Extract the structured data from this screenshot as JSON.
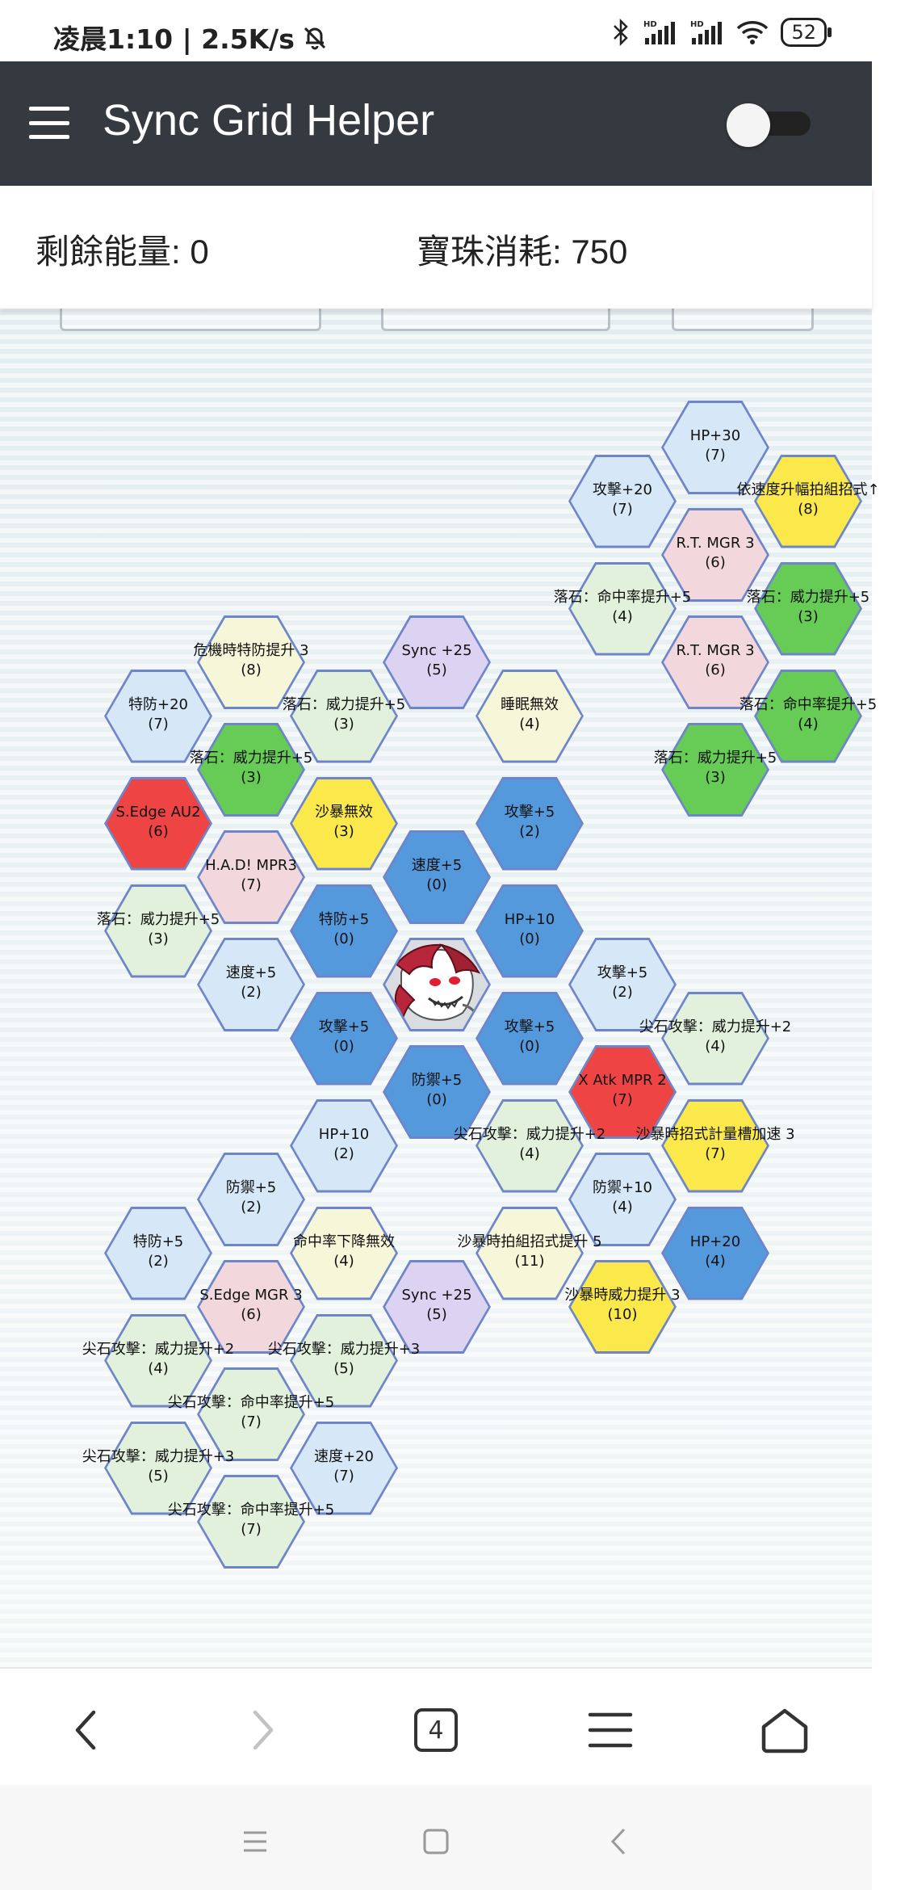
{
  "status_bar": {
    "time_speed": "凌晨1:10 | 2.5K/s",
    "battery": "52",
    "icons": [
      "mute-bell-icon",
      "bluetooth-icon",
      "signal-hd-icon",
      "signal-hd-icon",
      "wifi-icon",
      "battery-icon"
    ]
  },
  "app_bar": {
    "title": "Sync Grid Helper",
    "menu_icon": "hamburger-menu-icon",
    "toggle_on": false
  },
  "stats": {
    "energy": "剩餘能量: 0",
    "orbs": "寶珠消耗: 750"
  },
  "colors": {
    "dark_blue": "#5599dd",
    "light_blue": "#d6e8f7",
    "green": "#66cc55",
    "light_green": "#e2f1dc",
    "yellow": "#fbe94c",
    "light_yellow": "#f6f6d8",
    "red": "#ee4444",
    "pink": "#f2d8dc",
    "purple": "#dcd2f2",
    "center": "#d9dde0",
    "hex_border": "#6e86c9"
  },
  "tiles": [
    {
      "label": "HP+30",
      "cost": "(7)",
      "color": "light_blue",
      "col": 6,
      "row": 0
    },
    {
      "label": "攻擊+20",
      "cost": "(7)",
      "color": "light_blue",
      "col": 5,
      "row": 1
    },
    {
      "label": "依速度升幅拍組招式↑",
      "cost": "(8)",
      "color": "yellow",
      "col": 7,
      "row": 1
    },
    {
      "label": "R.T. MGR 3",
      "cost": "(6)",
      "color": "pink",
      "col": 6,
      "row": 2
    },
    {
      "label": "落石：命中率提升+5",
      "cost": "(4)",
      "color": "light_green",
      "col": 5,
      "row": 3
    },
    {
      "label": "落石：威力提升+5",
      "cost": "(3)",
      "color": "green",
      "col": 7,
      "row": 3
    },
    {
      "label": "危機時特防提升 3",
      "cost": "(8)",
      "color": "light_yellow",
      "col": 1,
      "row": 4
    },
    {
      "label": "Sync +25",
      "cost": "(5)",
      "color": "purple",
      "col": 3,
      "row": 4
    },
    {
      "label": "R.T. MGR 3",
      "cost": "(6)",
      "color": "pink",
      "col": 6,
      "row": 4
    },
    {
      "label": "特防+20",
      "cost": "(7)",
      "color": "light_blue",
      "col": 0,
      "row": 5
    },
    {
      "label": "落石：威力提升+5",
      "cost": "(3)",
      "color": "light_green",
      "col": 2,
      "row": 5
    },
    {
      "label": "睡眠無效",
      "cost": "(4)",
      "color": "light_yellow",
      "col": 4,
      "row": 5
    },
    {
      "label": "落石：命中率提升+5",
      "cost": "(4)",
      "color": "green",
      "col": 7,
      "row": 5
    },
    {
      "label": "落石：威力提升+5",
      "cost": "(3)",
      "color": "green",
      "col": 1,
      "row": 6
    },
    {
      "label": "落石：威力提升+5",
      "cost": "(3)",
      "color": "green",
      "col": 6,
      "row": 6
    },
    {
      "label": "S.Edge AU2",
      "cost": "(6)",
      "color": "red",
      "col": 0,
      "row": 7
    },
    {
      "label": "沙暴無效",
      "cost": "(3)",
      "color": "yellow",
      "col": 2,
      "row": 7
    },
    {
      "label": "攻擊+5",
      "cost": "(2)",
      "color": "dark_blue",
      "col": 4,
      "row": 7
    },
    {
      "label": "H.A.D! MPR3",
      "cost": "(7)",
      "color": "pink",
      "col": 1,
      "row": 8
    },
    {
      "label": "速度+5",
      "cost": "(0)",
      "color": "dark_blue",
      "col": 3,
      "row": 8
    },
    {
      "label": "落石：威力提升+5",
      "cost": "(3)",
      "color": "light_green",
      "col": 0,
      "row": 9
    },
    {
      "label": "特防+5",
      "cost": "(0)",
      "color": "dark_blue",
      "col": 2,
      "row": 9
    },
    {
      "label": "HP+10",
      "cost": "(0)",
      "color": "dark_blue",
      "col": 4,
      "row": 9
    },
    {
      "label": "速度+5",
      "cost": "(2)",
      "color": "light_blue",
      "col": 1,
      "row": 10
    },
    {
      "label": "攻擊+5",
      "cost": "(2)",
      "color": "light_blue",
      "col": 5,
      "row": 10
    },
    {
      "label": "攻擊+5",
      "cost": "(0)",
      "color": "dark_blue",
      "col": 2,
      "row": 11
    },
    {
      "label": "攻擊+5",
      "cost": "(0)",
      "color": "dark_blue",
      "col": 4,
      "row": 11
    },
    {
      "label": "尖石攻擊：威力提升+2",
      "cost": "(4)",
      "color": "light_green",
      "col": 6,
      "row": 11
    },
    {
      "label": "防禦+5",
      "cost": "(0)",
      "color": "dark_blue",
      "col": 3,
      "row": 12
    },
    {
      "label": "X Atk MPR 2",
      "cost": "(7)",
      "color": "red",
      "col": 5,
      "row": 12
    },
    {
      "label": "HP+10",
      "cost": "(2)",
      "color": "light_blue",
      "col": 2,
      "row": 13
    },
    {
      "label": "尖石攻擊：威力提升+2",
      "cost": "(4)",
      "color": "light_green",
      "col": 4,
      "row": 13
    },
    {
      "label": "沙暴時招式計量槽加速 3",
      "cost": "(7)",
      "color": "yellow",
      "col": 6,
      "row": 13
    },
    {
      "label": "防禦+5",
      "cost": "(2)",
      "color": "light_blue",
      "col": 1,
      "row": 14
    },
    {
      "label": "防禦+10",
      "cost": "(4)",
      "color": "light_blue",
      "col": 5,
      "row": 14
    },
    {
      "label": "特防+5",
      "cost": "(2)",
      "color": "light_blue",
      "col": 0,
      "row": 15
    },
    {
      "label": "命中率下降無效",
      "cost": "(4)",
      "color": "light_yellow",
      "col": 2,
      "row": 15
    },
    {
      "label": "沙暴時拍組招式提升 5",
      "cost": "(11)",
      "color": "light_yellow",
      "col": 4,
      "row": 15
    },
    {
      "label": "HP+20",
      "cost": "(4)",
      "color": "dark_blue",
      "col": 6,
      "row": 15
    },
    {
      "label": "S.Edge MGR 3",
      "cost": "(6)",
      "color": "pink",
      "col": 1,
      "row": 16
    },
    {
      "label": "Sync +25",
      "cost": "(5)",
      "color": "purple",
      "col": 3,
      "row": 16
    },
    {
      "label": "沙暴時威力提升 3",
      "cost": "(10)",
      "color": "yellow",
      "col": 5,
      "row": 16
    },
    {
      "label": "尖石攻擊：威力提升+2",
      "cost": "(4)",
      "color": "light_green",
      "col": 0,
      "row": 17
    },
    {
      "label": "尖石攻擊：威力提升+3",
      "cost": "(5)",
      "color": "light_green",
      "col": 2,
      "row": 17
    },
    {
      "label": "尖石攻擊：命中率提升+5",
      "cost": "(7)",
      "color": "light_green",
      "col": 1,
      "row": 18
    },
    {
      "label": "尖石攻擊：威力提升+3",
      "cost": "(5)",
      "color": "light_green",
      "col": 0,
      "row": 19
    },
    {
      "label": "速度+20",
      "cost": "(7)",
      "color": "light_blue",
      "col": 2,
      "row": 19
    },
    {
      "label": "尖石攻擊：命中率提升+5",
      "cost": "(7)",
      "color": "light_green",
      "col": 1,
      "row": 20
    }
  ],
  "center_tile": {
    "col": 3,
    "row": 10,
    "icon": "pokemon-avatar-icon"
  },
  "browser_bar": {
    "tabs_count": "4",
    "icons": [
      "back-arrow-icon",
      "forward-arrow-icon",
      "tabs-icon",
      "menu-icon",
      "home-icon"
    ]
  },
  "system_nav": {
    "icons": [
      "recents-icon",
      "home-square-icon",
      "back-chevron-icon"
    ]
  }
}
